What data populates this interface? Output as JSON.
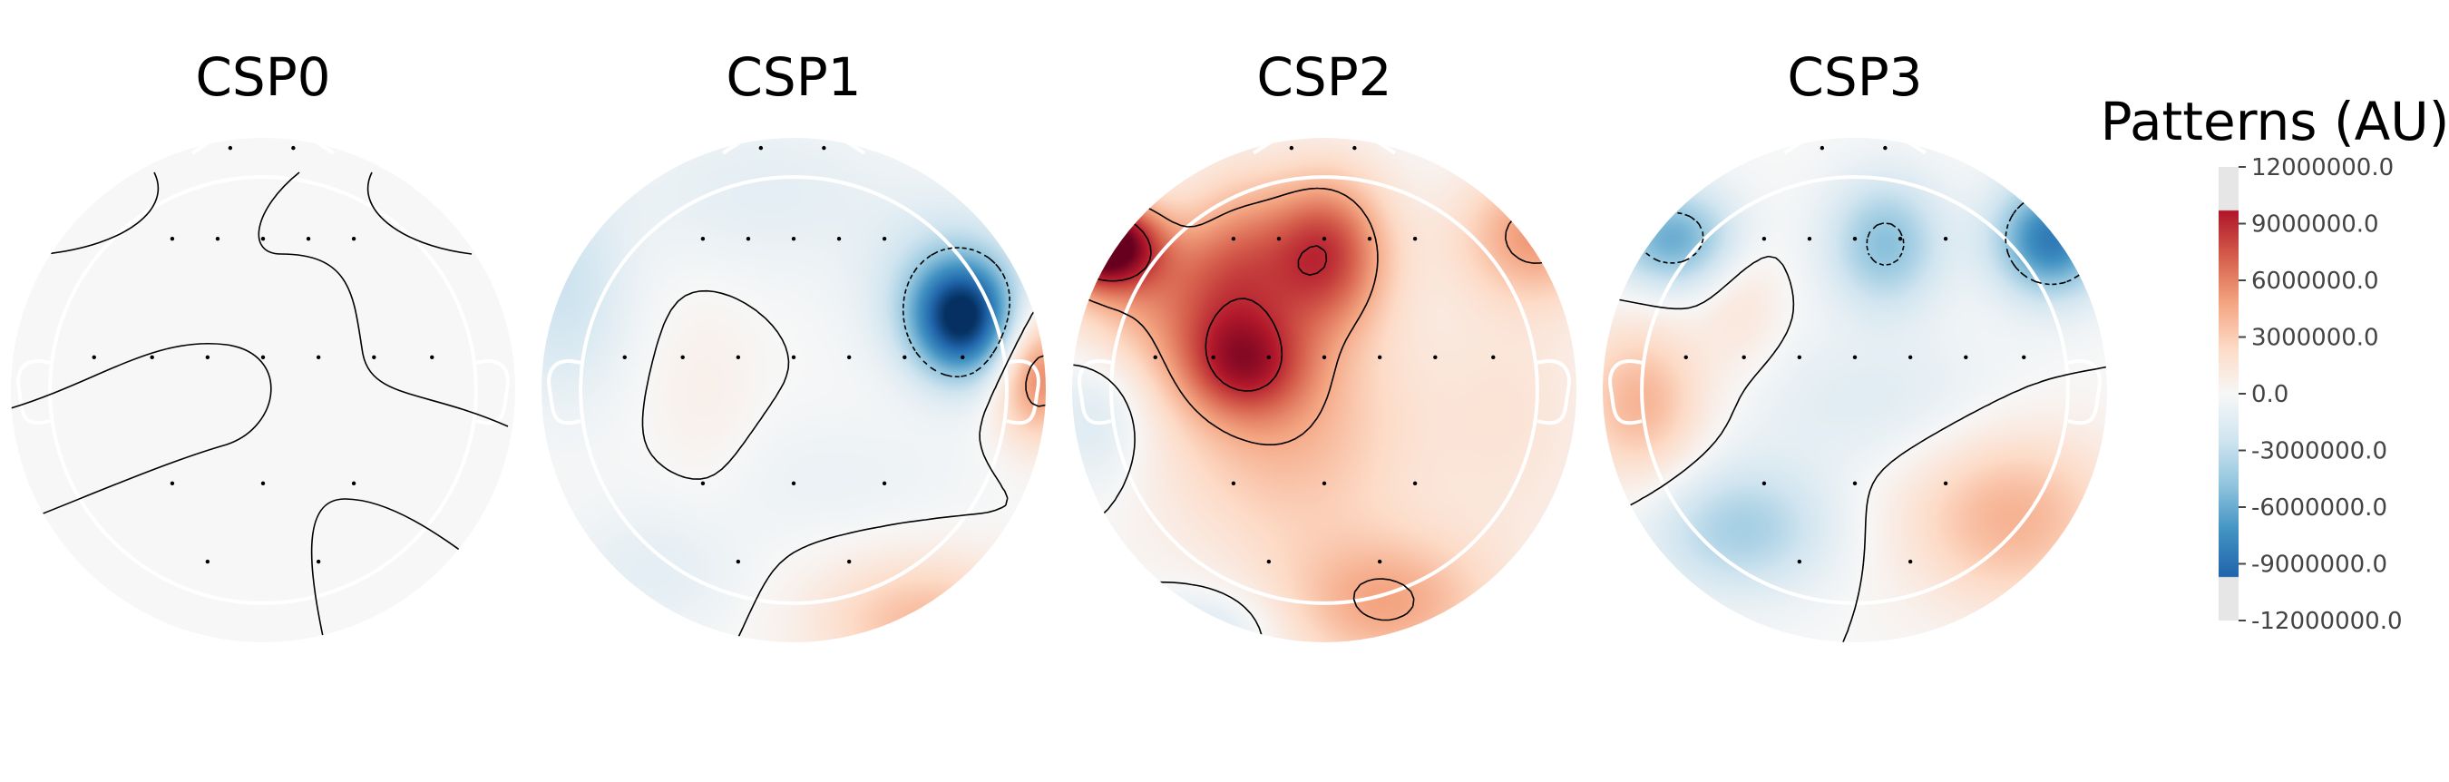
{
  "chart_data": {
    "type": "heatmap",
    "colormap": "RdBu_r",
    "colorbar": {
      "title": "Patterns (AU)",
      "ticks": [
        12000000.0,
        9000000.0,
        6000000.0,
        3000000.0,
        0.0,
        -3000000.0,
        -6000000.0,
        -9000000.0,
        -12000000.0
      ],
      "tick_labels": [
        "12000000.0",
        "9000000.0",
        "6000000.0",
        "3000000.0",
        "0.0",
        "-3000000.0",
        "-6000000.0",
        "-9000000.0",
        "-12000000.0"
      ],
      "range": [
        -12000000.0,
        12000000.0
      ],
      "colored_range": [
        -9700000.0,
        9700000.0
      ]
    },
    "panels": [
      {
        "title": "CSP0",
        "sources": []
      },
      {
        "title": "CSP1",
        "sources": [
          {
            "u": 0.67,
            "v": 0.28,
            "su": 0.14,
            "sv": 0.16,
            "amp": -10500000
          },
          {
            "u": 0.62,
            "v": 0.4,
            "su": 0.22,
            "sv": 0.22,
            "amp": -3000000
          },
          {
            "u": 0.97,
            "v": 0.06,
            "su": 0.12,
            "sv": 0.18,
            "amp": 6000000
          },
          {
            "u": 0.52,
            "v": -0.92,
            "su": 0.3,
            "sv": 0.18,
            "amp": 3800000
          },
          {
            "u": -0.12,
            "v": 0.78,
            "su": 0.4,
            "sv": 0.22,
            "amp": -1200000
          },
          {
            "u": -0.92,
            "v": 0.4,
            "su": 0.18,
            "sv": 0.3,
            "amp": -2500000
          },
          {
            "u": -0.55,
            "v": -0.72,
            "su": 0.25,
            "sv": 0.18,
            "amp": -1200000
          },
          {
            "u": -0.35,
            "v": -0.05,
            "su": 0.15,
            "sv": 0.3,
            "amp": 700000
          },
          {
            "u": 0.15,
            "v": -0.35,
            "su": 0.4,
            "sv": 0.18,
            "amp": -700000
          }
        ]
      },
      {
        "title": "CSP2",
        "sources": [
          {
            "u": -0.88,
            "v": 0.58,
            "su": 0.15,
            "sv": 0.12,
            "amp": 12500000
          },
          {
            "u": -0.62,
            "v": 0.38,
            "su": 0.28,
            "sv": 0.22,
            "amp": 4500000
          },
          {
            "u": 0.0,
            "v": 0.55,
            "su": 0.18,
            "sv": 0.22,
            "amp": 8000000
          },
          {
            "u": -0.32,
            "v": 0.1,
            "su": 0.18,
            "sv": 0.15,
            "amp": 6000000
          },
          {
            "u": -0.35,
            "v": 0.52,
            "su": 0.15,
            "sv": 0.25,
            "amp": 3500000
          },
          {
            "u": -0.15,
            "v": -0.15,
            "su": 0.35,
            "sv": 0.35,
            "amp": 4000000
          },
          {
            "u": 0.85,
            "v": 0.62,
            "su": 0.22,
            "sv": 0.18,
            "amp": 5000000
          },
          {
            "u": 0.25,
            "v": -0.85,
            "su": 0.3,
            "sv": 0.2,
            "amp": 4500000
          },
          {
            "u": -0.9,
            "v": -0.1,
            "su": 0.15,
            "sv": 0.2,
            "amp": -2000000
          },
          {
            "u": -0.45,
            "v": -0.95,
            "su": 0.2,
            "sv": 0.12,
            "amp": -2000000
          },
          {
            "u": 0.75,
            "v": -0.1,
            "su": 0.25,
            "sv": 0.4,
            "amp": 1500000
          }
        ]
      },
      {
        "title": "CSP3",
        "sources": [
          {
            "u": -0.72,
            "v": 0.6,
            "su": 0.18,
            "sv": 0.14,
            "amp": -6000000
          },
          {
            "u": 0.12,
            "v": 0.58,
            "su": 0.16,
            "sv": 0.18,
            "amp": -5000000
          },
          {
            "u": 0.78,
            "v": 0.6,
            "su": 0.16,
            "sv": 0.16,
            "amp": -8500000
          },
          {
            "u": -0.45,
            "v": -0.55,
            "su": 0.25,
            "sv": 0.18,
            "amp": -4000000
          },
          {
            "u": -0.85,
            "v": -0.05,
            "su": 0.18,
            "sv": 0.22,
            "amp": 4200000
          },
          {
            "u": 0.62,
            "v": -0.5,
            "su": 0.3,
            "sv": 0.25,
            "amp": 4200000
          },
          {
            "u": -0.45,
            "v": 0.35,
            "su": 0.12,
            "sv": 0.2,
            "amp": 1500000
          },
          {
            "u": 0.1,
            "v": -0.05,
            "su": 0.4,
            "sv": 0.2,
            "amp": -1500000
          }
        ]
      }
    ]
  }
}
